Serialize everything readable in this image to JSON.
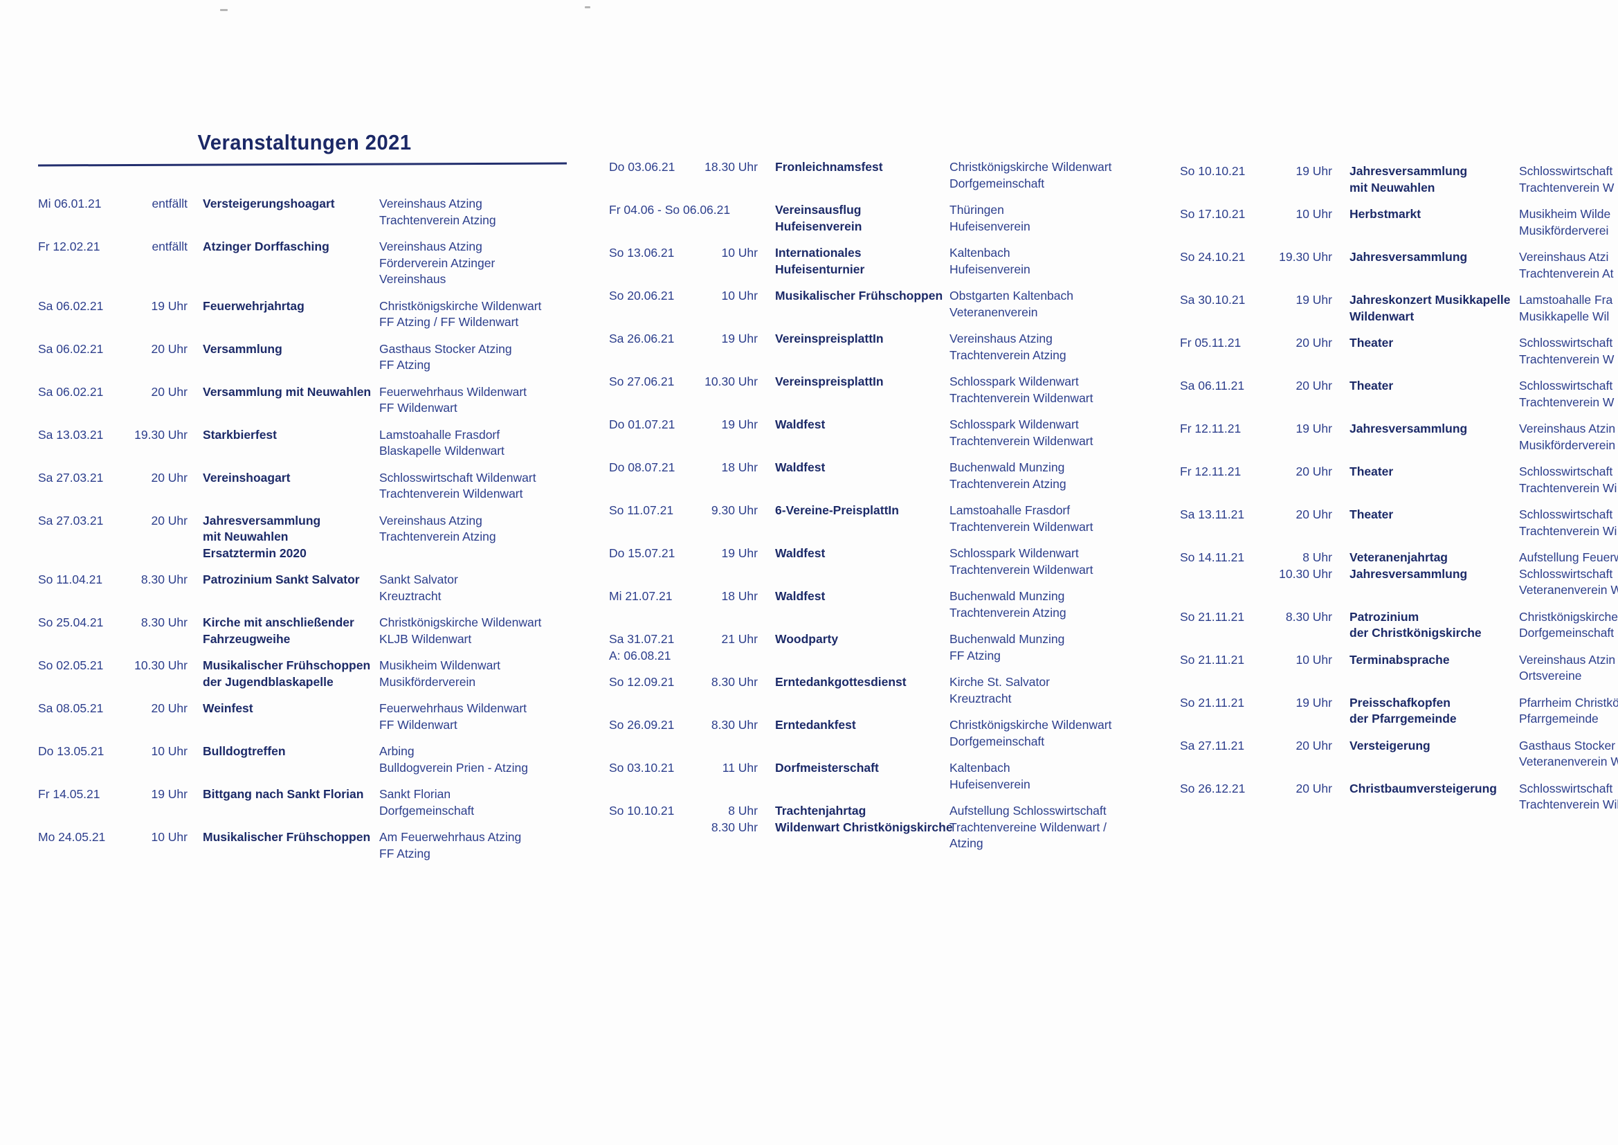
{
  "title": "Veranstaltungen 2021",
  "columns": [
    {
      "entries": [
        {
          "date": [
            "Mi 06.01.21"
          ],
          "time": [
            "entfällt"
          ],
          "event": [
            "Versteigerungshoagart"
          ],
          "location": [
            "Vereinshaus Atzing",
            "Trachtenverein Atzing"
          ]
        },
        {
          "date": [
            "Fr 12.02.21"
          ],
          "time": [
            "entfällt"
          ],
          "event": [
            "Atzinger Dorffasching"
          ],
          "location": [
            "Vereinshaus Atzing",
            "Förderverein Atzinger",
            "Vereinshaus"
          ]
        },
        {
          "date": [
            "Sa 06.02.21"
          ],
          "time": [
            "19 Uhr"
          ],
          "event": [
            "Feuerwehrjahrtag"
          ],
          "location": [
            "Christkönigskirche Wildenwart",
            "FF Atzing / FF Wildenwart"
          ]
        },
        {
          "date": [
            "Sa 06.02.21"
          ],
          "time": [
            "20 Uhr"
          ],
          "event": [
            "Versammlung"
          ],
          "location": [
            "Gasthaus Stocker Atzing",
            "FF Atzing"
          ]
        },
        {
          "date": [
            "Sa 06.02.21"
          ],
          "time": [
            "20 Uhr"
          ],
          "event": [
            "Versammlung mit Neuwahlen"
          ],
          "location": [
            "Feuerwehrhaus Wildenwart",
            "FF Wildenwart"
          ]
        },
        {
          "date": [
            "Sa 13.03.21"
          ],
          "time": [
            "19.30 Uhr"
          ],
          "event": [
            "Starkbierfest"
          ],
          "location": [
            "Lamstoahalle Frasdorf",
            "Blaskapelle Wildenwart"
          ]
        },
        {
          "date": [
            "Sa 27.03.21"
          ],
          "time": [
            "20 Uhr"
          ],
          "event": [
            "Vereinshoagart"
          ],
          "location": [
            "Schlosswirtschaft Wildenwart",
            "Trachtenverein Wildenwart"
          ]
        },
        {
          "date": [
            "Sa 27.03.21"
          ],
          "time": [
            "20 Uhr"
          ],
          "event": [
            "Jahresversammlung",
            "mit Neuwahlen",
            "Ersatztermin 2020"
          ],
          "location": [
            "Vereinshaus Atzing",
            "Trachtenverein Atzing"
          ]
        },
        {
          "date": [
            "So 11.04.21"
          ],
          "time": [
            "8.30 Uhr"
          ],
          "event": [
            "Patrozinium Sankt Salvator"
          ],
          "location": [
            "Sankt Salvator",
            "Kreuztracht"
          ]
        },
        {
          "date": [
            "So 25.04.21"
          ],
          "time": [
            "8.30 Uhr"
          ],
          "event": [
            "Kirche mit anschließender",
            "Fahrzeugweihe"
          ],
          "location": [
            "Christkönigskirche Wildenwart",
            "KLJB Wildenwart"
          ]
        },
        {
          "date": [
            "So 02.05.21"
          ],
          "time": [
            "10.30 Uhr"
          ],
          "event": [
            "Musikalischer Frühschoppen",
            "der Jugendblaskapelle"
          ],
          "location": [
            "Musikheim Wildenwart",
            "Musikförderverein"
          ]
        },
        {
          "date": [
            "Sa 08.05.21"
          ],
          "time": [
            "20 Uhr"
          ],
          "event": [
            "Weinfest"
          ],
          "location": [
            "Feuerwehrhaus Wildenwart",
            "FF Wildenwart"
          ]
        },
        {
          "date": [
            "Do 13.05.21"
          ],
          "time": [
            "10 Uhr"
          ],
          "event": [
            "Bulldogtreffen"
          ],
          "location": [
            "Arbing",
            "Bulldogverein Prien - Atzing"
          ]
        },
        {
          "date": [
            "Fr 14.05.21"
          ],
          "time": [
            "19 Uhr"
          ],
          "event": [
            "Bittgang nach Sankt Florian"
          ],
          "location": [
            "Sankt Florian",
            "Dorfgemeinschaft"
          ]
        },
        {
          "date": [
            "Mo 24.05.21"
          ],
          "time": [
            "10 Uhr"
          ],
          "event": [
            "Musikalischer Frühschoppen"
          ],
          "location": [
            "Am Feuerwehrhaus Atzing",
            "FF Atzing"
          ]
        }
      ]
    },
    {
      "entries": [
        {
          "date": [
            "Do 03.06.21"
          ],
          "time": [
            "18.30 Uhr"
          ],
          "event": [
            "Fronleichnamsfest"
          ],
          "location": [
            "Christkönigskirche Wildenwart",
            "Dorfgemeinschaft"
          ]
        },
        {
          "date": [
            "Fr 04.06 - So 06.06.21"
          ],
          "time": [],
          "event": [
            "Vereinsausflug",
            "Hufeisenverein"
          ],
          "location": [
            "Thüringen",
            "Hufeisenverein"
          ]
        },
        {
          "date": [
            "So 13.06.21"
          ],
          "time": [
            "10 Uhr"
          ],
          "event": [
            "Internationales",
            "Hufeisenturnier"
          ],
          "location": [
            "Kaltenbach",
            "Hufeisenverein"
          ]
        },
        {
          "date": [
            "So 20.06.21"
          ],
          "time": [
            "10 Uhr"
          ],
          "event": [
            "Musikalischer Frühschoppen"
          ],
          "location": [
            "Obstgarten Kaltenbach",
            "Veteranenverein"
          ]
        },
        {
          "date": [
            "Sa 26.06.21"
          ],
          "time": [
            "19 Uhr"
          ],
          "event": [
            "VereinspreisplattIn"
          ],
          "location": [
            "Vereinshaus Atzing",
            "Trachtenverein Atzing"
          ]
        },
        {
          "date": [
            "So 27.06.21"
          ],
          "time": [
            "10.30 Uhr"
          ],
          "event": [
            "VereinspreisplattIn"
          ],
          "location": [
            "Schlosspark Wildenwart",
            "Trachtenverein Wildenwart"
          ]
        },
        {
          "date": [
            "Do 01.07.21"
          ],
          "time": [
            "19 Uhr"
          ],
          "event": [
            "Waldfest"
          ],
          "location": [
            "Schlosspark Wildenwart",
            "Trachtenverein Wildenwart"
          ]
        },
        {
          "date": [
            "Do 08.07.21"
          ],
          "time": [
            "18 Uhr"
          ],
          "event": [
            "Waldfest"
          ],
          "location": [
            "Buchenwald Munzing",
            "Trachtenverein Atzing"
          ]
        },
        {
          "date": [
            "So 11.07.21"
          ],
          "time": [
            "9.30 Uhr"
          ],
          "event": [
            "6-Vereine-PreisplattIn"
          ],
          "location": [
            "Lamstoahalle Frasdorf",
            "Trachtenverein Wildenwart"
          ]
        },
        {
          "date": [
            "Do 15.07.21"
          ],
          "time": [
            "19 Uhr"
          ],
          "event": [
            "Waldfest"
          ],
          "location": [
            "Schlosspark Wildenwart",
            "Trachtenverein Wildenwart"
          ]
        },
        {
          "date": [
            "Mi 21.07.21"
          ],
          "time": [
            "18 Uhr"
          ],
          "event": [
            "Waldfest"
          ],
          "location": [
            "Buchenwald Munzing",
            "Trachtenverein Atzing"
          ]
        },
        {
          "date": [
            "Sa 31.07.21",
            "A: 06.08.21"
          ],
          "time": [
            "21 Uhr"
          ],
          "event": [
            "Woodparty"
          ],
          "location": [
            "Buchenwald Munzing",
            "FF Atzing"
          ]
        },
        {
          "date": [
            "So 12.09.21"
          ],
          "time": [
            "8.30 Uhr"
          ],
          "event": [
            "Erntedankgottesdienst"
          ],
          "location": [
            "Kirche St. Salvator",
            "Kreuztracht"
          ]
        },
        {
          "date": [
            "So 26.09.21"
          ],
          "time": [
            "8.30 Uhr"
          ],
          "event": [
            "Erntedankfest"
          ],
          "location": [
            "Christkönigskirche Wildenwart",
            "Dorfgemeinschaft"
          ]
        },
        {
          "date": [
            "So 03.10.21"
          ],
          "time": [
            "11 Uhr"
          ],
          "event": [
            "Dorfmeisterschaft"
          ],
          "location": [
            "Kaltenbach",
            "Hufeisenverein"
          ]
        },
        {
          "date": [
            "So 10.10.21"
          ],
          "time": [
            "8 Uhr",
            "8.30 Uhr"
          ],
          "event": [
            "Trachtenjahrtag",
            "Wildenwart Christkönigskirche"
          ],
          "location": [
            "Aufstellung Schlosswirtschaft",
            "Trachtenvereine Wildenwart /",
            "Atzing"
          ]
        }
      ]
    },
    {
      "entries": [
        {
          "date": [
            "So 10.10.21"
          ],
          "time": [
            "19 Uhr"
          ],
          "event": [
            "Jahresversammlung",
            "mit Neuwahlen"
          ],
          "location": [
            "Schlosswirtschaft",
            "Trachtenverein W"
          ]
        },
        {
          "date": [
            "So 17.10.21"
          ],
          "time": [
            "10 Uhr"
          ],
          "event": [
            "Herbstmarkt"
          ],
          "location": [
            "Musikheim Wilde",
            "Musikförderverei"
          ]
        },
        {
          "date": [
            "So 24.10.21"
          ],
          "time": [
            "19.30 Uhr"
          ],
          "event": [
            "Jahresversammlung"
          ],
          "location": [
            "Vereinshaus Atzi",
            "Trachtenverein At"
          ]
        },
        {
          "date": [
            "Sa 30.10.21"
          ],
          "time": [
            "19 Uhr"
          ],
          "event": [
            "Jahreskonzert Musikkapelle",
            "Wildenwart"
          ],
          "location": [
            "Lamstoahalle Fra",
            "Musikkapelle Wil"
          ]
        },
        {
          "date": [
            "Fr 05.11.21"
          ],
          "time": [
            "20 Uhr"
          ],
          "event": [
            "Theater"
          ],
          "location": [
            "Schlosswirtschaft",
            "Trachtenverein W"
          ]
        },
        {
          "date": [
            "Sa 06.11.21"
          ],
          "time": [
            "20 Uhr"
          ],
          "event": [
            "Theater"
          ],
          "location": [
            "Schlosswirtschaft",
            "Trachtenverein W"
          ]
        },
        {
          "date": [
            "Fr 12.11.21"
          ],
          "time": [
            "19 Uhr"
          ],
          "event": [
            "Jahresversammlung"
          ],
          "location": [
            "Vereinshaus Atzin",
            "Musikförderverein"
          ]
        },
        {
          "date": [
            "Fr 12.11.21"
          ],
          "time": [
            "20 Uhr"
          ],
          "event": [
            "Theater"
          ],
          "location": [
            "Schlosswirtschaft",
            "Trachtenverein Wi"
          ]
        },
        {
          "date": [
            "Sa 13.11.21"
          ],
          "time": [
            "20 Uhr"
          ],
          "event": [
            "Theater"
          ],
          "location": [
            "Schlosswirtschaft",
            "Trachtenverein Wi"
          ]
        },
        {
          "date": [
            "So 14.11.21"
          ],
          "time": [
            "8 Uhr",
            "10.30 Uhr"
          ],
          "event": [
            "Veteranenjahrtag",
            "Jahresversammlung"
          ],
          "location": [
            "Aufstellung Feuerw",
            "Schlosswirtschaft",
            "Veteranenverein W"
          ]
        },
        {
          "date": [
            "So 21.11.21"
          ],
          "time": [
            "8.30 Uhr"
          ],
          "event": [
            "Patrozinium",
            "der Christkönigskirche"
          ],
          "location": [
            "Christkönigskirche",
            "Dorfgemeinschaft"
          ]
        },
        {
          "date": [
            "So 21.11.21"
          ],
          "time": [
            "10 Uhr"
          ],
          "event": [
            "Terminabsprache"
          ],
          "location": [
            "Vereinshaus Atzin",
            "Ortsvereine"
          ]
        },
        {
          "date": [
            "So 21.11.21"
          ],
          "time": [
            "19 Uhr"
          ],
          "event": [
            "Preisschafkopfen",
            "der Pfarrgemeinde"
          ],
          "location": [
            "Pfarrheim Christkö",
            "Pfarrgemeinde"
          ]
        },
        {
          "date": [
            "Sa 27.11.21"
          ],
          "time": [
            "20 Uhr"
          ],
          "event": [
            "Versteigerung"
          ],
          "location": [
            "Gasthaus Stocker",
            "Veteranenverein W"
          ]
        },
        {
          "date": [
            "So 26.12.21"
          ],
          "time": [
            "20 Uhr"
          ],
          "event": [
            "Christbaumversteigerung"
          ],
          "location": [
            "Schlosswirtschaft",
            "Trachtenverein Wil"
          ]
        }
      ]
    }
  ]
}
